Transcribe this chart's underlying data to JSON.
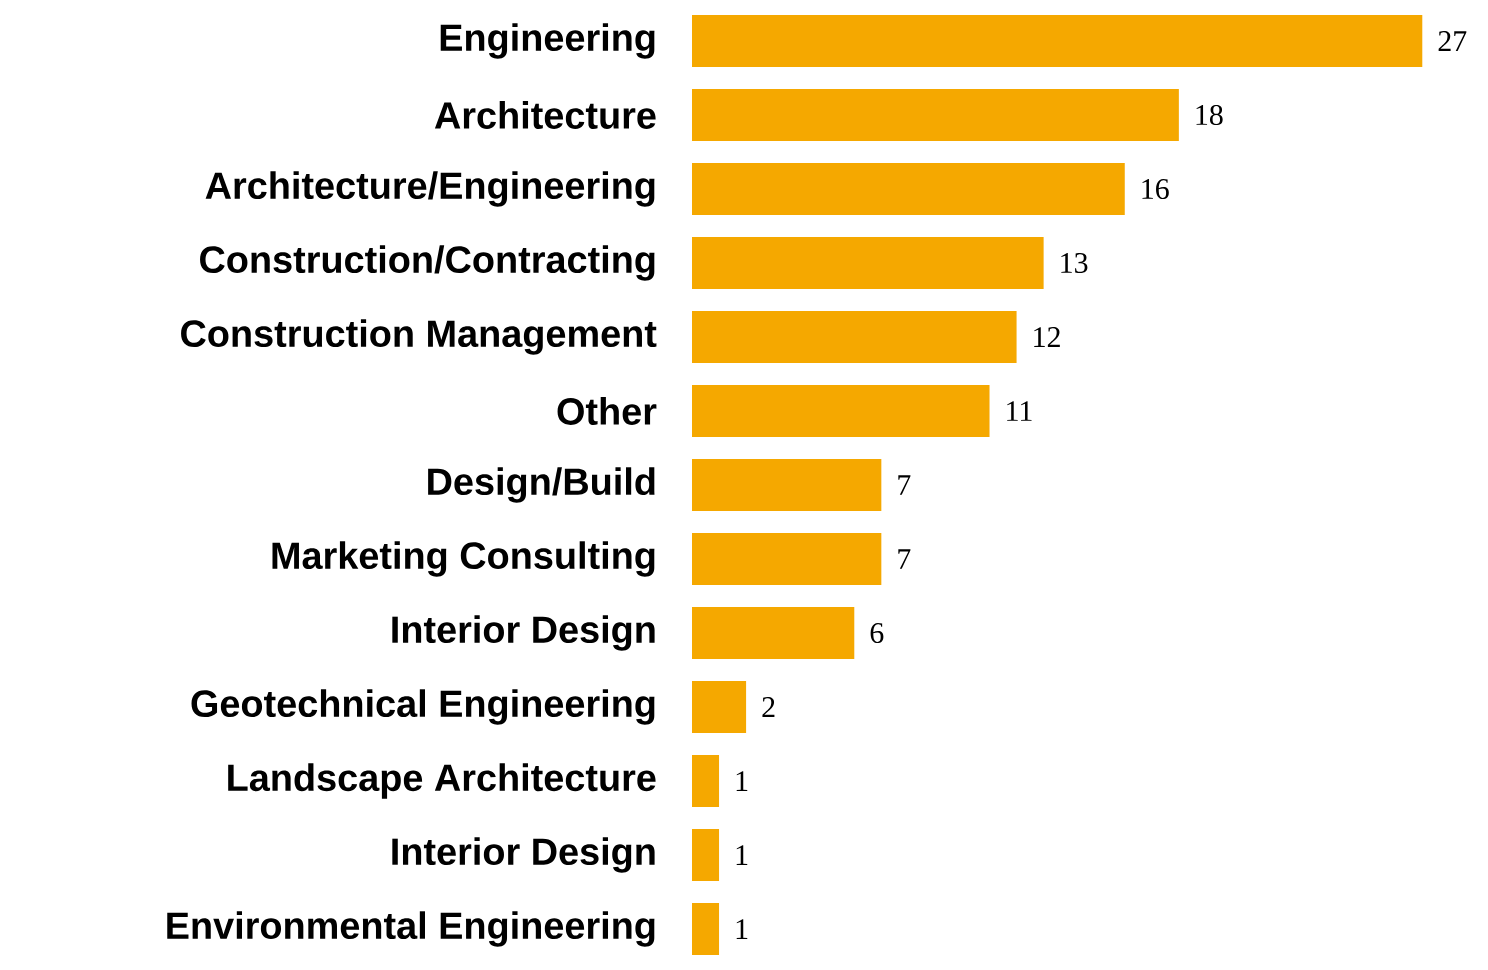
{
  "chart_data": {
    "type": "bar",
    "orientation": "horizontal",
    "categories": [
      "Engineering",
      "Architecture",
      "Architecture/Engineering",
      "Construction/Contracting",
      "Construction Management",
      "Other",
      "Design/Build",
      "Marketing Consulting",
      "Interior Design",
      "Geotechnical Engineering",
      "Landscape Architecture",
      "Interior Design",
      "Environmental Engineering"
    ],
    "values": [
      27,
      18,
      16,
      13,
      12,
      11,
      7,
      7,
      6,
      2,
      1,
      1,
      1
    ],
    "color": "#f5a800",
    "data_labels": true
  }
}
